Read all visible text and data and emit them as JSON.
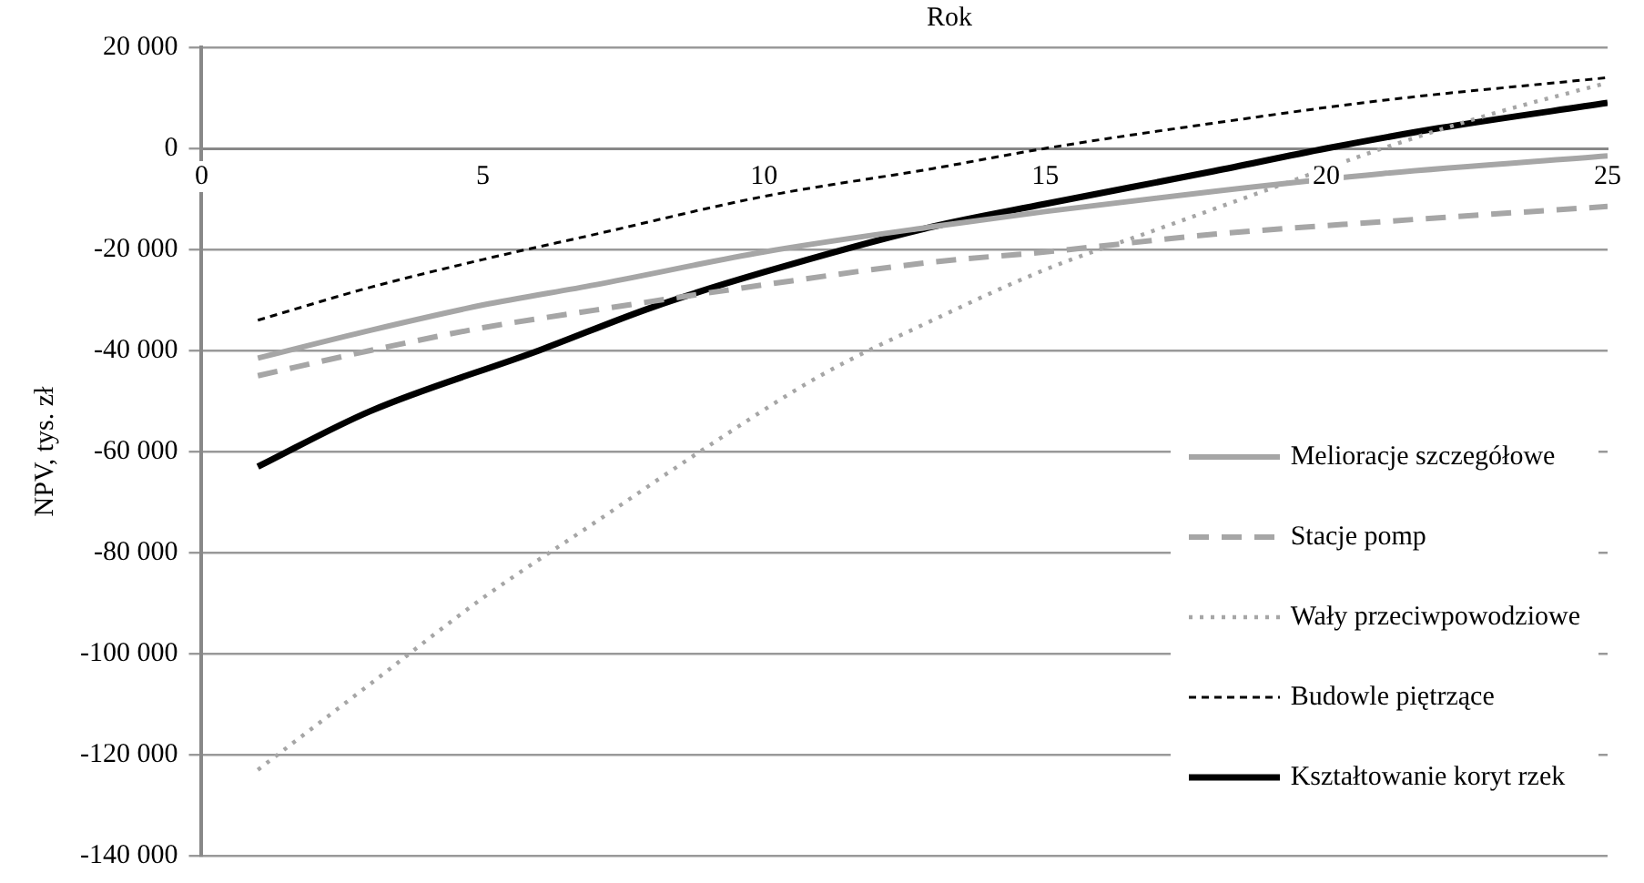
{
  "chart_data": {
    "type": "line",
    "xlabel": "Rok",
    "ylabel": "NPV, tys. zł",
    "xlim": [
      0,
      25
    ],
    "xticks": [
      0,
      5,
      10,
      15,
      20,
      25
    ],
    "ylim": [
      -140000,
      20000
    ],
    "yticks": [
      {
        "value": -140000,
        "label": "-140 000"
      },
      {
        "value": -120000,
        "label": "-120 000"
      },
      {
        "value": -100000,
        "label": "-100 000"
      },
      {
        "value": -80000,
        "label": "-80 000"
      },
      {
        "value": -60000,
        "label": "-60 000"
      },
      {
        "value": -40000,
        "label": "-40 000"
      },
      {
        "value": -20000,
        "label": "-20 000"
      },
      {
        "value": 0,
        "label": "0"
      },
      {
        "value": 20000,
        "label": "20 000"
      }
    ],
    "grid": "y",
    "legend": "bottom right",
    "marker": "none",
    "series": [
      {
        "name": "Melioracje szczegółowe",
        "color": "#a6a6a6",
        "line_style": "solid",
        "x": [
          1,
          3,
          5,
          7,
          10,
          13,
          15,
          18,
          21,
          25
        ],
        "values": [
          -41500,
          -36000,
          -31000,
          -27000,
          -20500,
          -15500,
          -12500,
          -8500,
          -5000,
          -1500
        ]
      },
      {
        "name": "Stacje pomp",
        "color": "#a6a6a6",
        "line_style": "dashed",
        "x": [
          1,
          3,
          5,
          7,
          10,
          13,
          15,
          18,
          21,
          25
        ],
        "values": [
          -45000,
          -40000,
          -35500,
          -32000,
          -27000,
          -22500,
          -20500,
          -17000,
          -14500,
          -11500
        ]
      },
      {
        "name": "Wały przeciwpowodziowe",
        "color": "#a6a6a6",
        "line_style": "dotted",
        "x": [
          1,
          3,
          5,
          7,
          9,
          11,
          13,
          15,
          17,
          19,
          21,
          23,
          25
        ],
        "values": [
          -123000,
          -106000,
          -89000,
          -74000,
          -59000,
          -45000,
          -34000,
          -24000,
          -16000,
          -8000,
          0,
          7000,
          13000
        ]
      },
      {
        "name": "Budowle piętrzące",
        "color": "#000000",
        "line_style": "dashed",
        "x": [
          1,
          3,
          5,
          7,
          10,
          13,
          15,
          18,
          21,
          25
        ],
        "values": [
          -34000,
          -27500,
          -22000,
          -17000,
          -9500,
          -4000,
          0,
          5000,
          9500,
          14000
        ]
      },
      {
        "name": "Kształtowanie koryt rzek",
        "color": "#000000",
        "line_style": "solid",
        "x": [
          1,
          3,
          6,
          8,
          10,
          13,
          15,
          18,
          20,
          22,
          25
        ],
        "values": [
          -63000,
          -52000,
          -40000,
          -31500,
          -24500,
          -15500,
          -11000,
          -4500,
          0,
          4000,
          9000
        ]
      }
    ]
  }
}
